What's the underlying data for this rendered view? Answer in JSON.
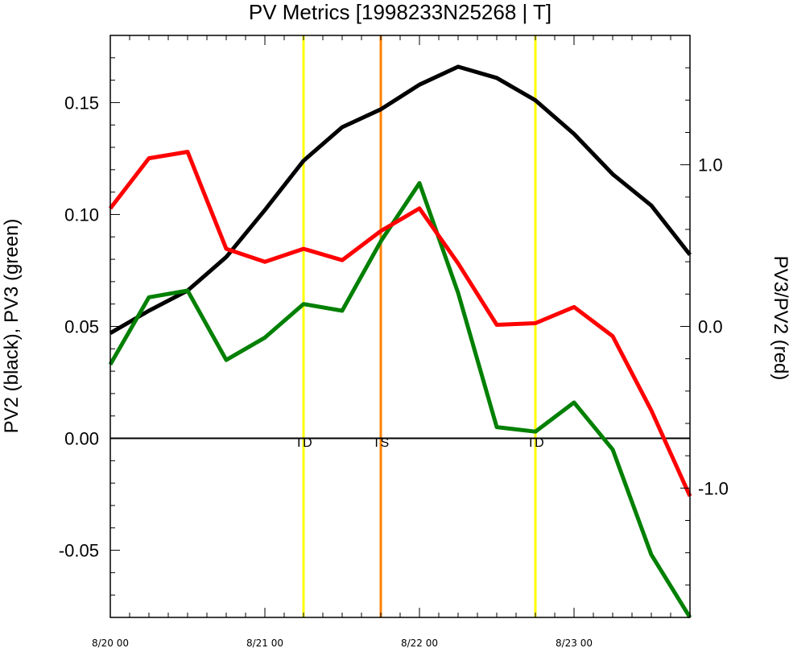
{
  "chart_data": {
    "type": "line",
    "title": "PV Metrics [1998233N25268 | T]",
    "ylabel_left": "PV2 (black), PV3 (green)",
    "ylabel_right": "PV3/PV2 (red)",
    "x_ticks": [
      {
        "t": 0,
        "label": "8/20 00"
      },
      {
        "t": 24,
        "label": "8/21 00"
      },
      {
        "t": 48,
        "label": "8/22 00"
      },
      {
        "t": 72,
        "label": "8/23 00"
      }
    ],
    "xlim": [
      0,
      90
    ],
    "y_left": {
      "lim": [
        -0.08,
        0.18
      ],
      "ticks": [
        -0.05,
        0.0,
        0.05,
        0.1,
        0.15
      ],
      "tick_labels": [
        "-0.05",
        "0.00",
        "0.05",
        "0.10",
        "0.15"
      ]
    },
    "y_right": {
      "lim": [
        -1.8,
        1.8
      ],
      "ticks": [
        -1.0,
        0.0,
        1.0
      ],
      "tick_labels": [
        "-1.0",
        "0.0",
        "1.0"
      ]
    },
    "zero_line": 0.0,
    "x": [
      0,
      6,
      12,
      18,
      24,
      30,
      36,
      42,
      48,
      54,
      60,
      66,
      72,
      78,
      84,
      90
    ],
    "series": [
      {
        "axis": "left",
        "color": "#000000",
        "values": [
          0.047,
          0.057,
          0.066,
          0.081,
          0.102,
          0.124,
          0.139,
          0.147,
          0.158,
          0.166,
          0.161,
          0.151,
          0.136,
          0.118,
          0.104,
          0.082
        ]
      },
      {
        "axis": "left",
        "color": "#008000",
        "values": [
          0.033,
          0.063,
          0.066,
          0.035,
          0.045,
          0.06,
          0.057,
          0.088,
          0.114,
          0.065,
          0.005,
          0.003,
          0.016,
          -0.005,
          -0.052,
          -0.08
        ]
      },
      {
        "axis": "right",
        "color": "#ff0000",
        "values": [
          0.73,
          1.04,
          1.08,
          0.48,
          0.4,
          0.48,
          0.41,
          0.59,
          0.73,
          0.39,
          0.01,
          0.02,
          0.12,
          -0.06,
          -0.52,
          -1.05
        ]
      }
    ],
    "markers": [
      {
        "t": 30,
        "label": "TD",
        "color": "#ffff00"
      },
      {
        "t": 42,
        "label": "TS",
        "color": "#ff8000"
      },
      {
        "t": 66,
        "label": "TD",
        "color": "#ffff00"
      }
    ]
  }
}
